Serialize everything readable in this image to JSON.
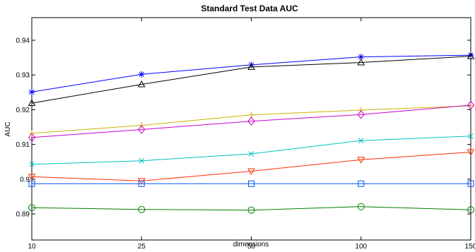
{
  "chart_data": {
    "type": "line",
    "title": "Standard Test Data AUC",
    "xlabel": "dimensions",
    "ylabel": "AUC",
    "x": [
      10,
      25,
      50,
      100,
      150
    ],
    "x_ticks": [
      10,
      25,
      50,
      100,
      150
    ],
    "xlim": [
      10,
      150
    ],
    "y_ticks": [
      0.89,
      0.9,
      0.91,
      0.92,
      0.93,
      0.94
    ],
    "y_tick_labels": [
      "0.89",
      "0.9",
      "0.91",
      "0.92",
      "0.93",
      "0.94"
    ],
    "ylim": [
      0.8825,
      0.9465
    ],
    "grid": false,
    "legend": "none",
    "series": [
      {
        "color": "#0000ff",
        "marker": "star",
        "values": [
          0.9251,
          0.9302,
          0.9329,
          0.9352,
          0.9357
        ]
      },
      {
        "color": "#000000",
        "marker": "triangle-up",
        "values": [
          0.9219,
          0.9273,
          0.9323,
          0.9336,
          0.9354
        ]
      },
      {
        "color": "#c8b400",
        "marker": "plus",
        "values": [
          0.9132,
          0.9155,
          0.9185,
          0.9199,
          0.9211
        ]
      },
      {
        "color": "#cc00cc",
        "marker": "diamond",
        "values": [
          0.912,
          0.9143,
          0.9167,
          0.9186,
          0.9213
        ]
      },
      {
        "color": "#00bfbf",
        "marker": "x",
        "values": [
          0.9043,
          0.9053,
          0.9073,
          0.9111,
          0.9124
        ]
      },
      {
        "color": "#ff2a00",
        "marker": "triangle-down",
        "values": [
          0.9007,
          0.8995,
          0.9023,
          0.9056,
          0.9078
        ]
      },
      {
        "color": "#0050ff",
        "marker": "square",
        "values": [
          0.8987,
          0.8987,
          0.8987,
          0.8987,
          0.8987
        ]
      },
      {
        "color": "#008000",
        "marker": "circle",
        "values": [
          0.8918,
          0.8913,
          0.8911,
          0.8921,
          0.8912
        ]
      }
    ]
  }
}
